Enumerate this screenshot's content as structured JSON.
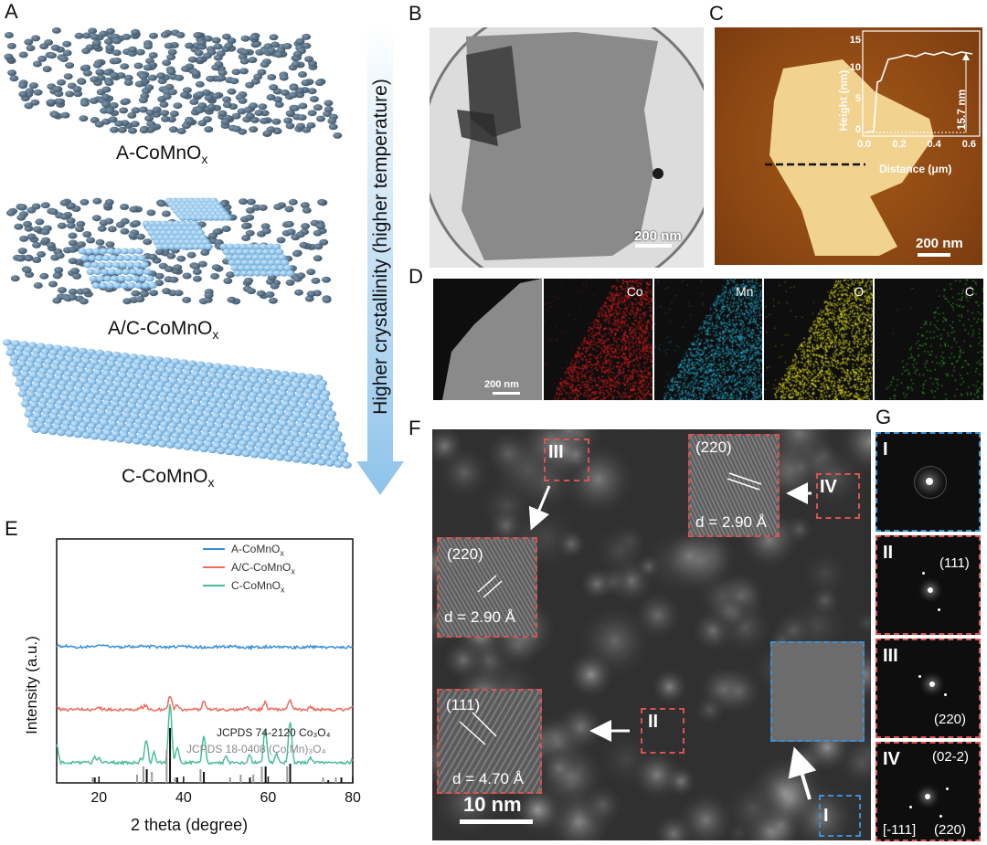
{
  "panels": {
    "A": {
      "label": "A",
      "arrow_text": "Higher crystallinity (higher temperature)",
      "captions": {
        "a": {
          "main": "A-CoMnO",
          "sub": "x"
        },
        "ac": {
          "main": "A/C-CoMnO",
          "sub": "x"
        },
        "c": {
          "main": "C-CoMnO",
          "sub": "x"
        }
      }
    },
    "B": {
      "label": "B",
      "scalebar": "200 nm"
    },
    "C": {
      "label": "C",
      "scalebar": "200 nm",
      "inset": {
        "ylabel": "Height (nm)",
        "xlabel": "Distance (μm)",
        "yticks": [
          "0",
          "5",
          "10",
          "15"
        ],
        "xticks": [
          "0.0",
          "0.2",
          "0.4",
          "0.6"
        ],
        "annotation": "15.7 nm"
      }
    },
    "D": {
      "label": "D",
      "scalebar": "200 nm",
      "maps": [
        "Co",
        "Mn",
        "O",
        "C"
      ],
      "colors": {
        "Co": "#e41b1b",
        "Mn": "#1fb3d9",
        "O": "#e8e21a",
        "C": "#35b52a"
      }
    },
    "E": {
      "label": "E",
      "legend": [
        {
          "main": "A-CoMnO",
          "sub": "x",
          "color": "#3a8fd6"
        },
        {
          "main": "A/C-CoMnO",
          "sub": "x",
          "color": "#ef6a5a"
        },
        {
          "main": "C-CoMnO",
          "sub": "x",
          "color": "#4cbf94"
        }
      ],
      "ref1": "JCPDS 74-2120 Co₃O₄",
      "ref2": "JCPDS 18-0408 (Co,Mn)₃O₄",
      "ylabel": "Intensity (a.u.)",
      "xlabel": "2 theta (degree)",
      "xticks": [
        "20",
        "40",
        "60",
        "80"
      ]
    },
    "F": {
      "label": "F",
      "scalebar": "10 nm",
      "regions": [
        "I",
        "II",
        "III",
        "IV"
      ],
      "insets": {
        "iv": {
          "plane": "(220)",
          "d": "d = 2.90 Å"
        },
        "iii": {
          "plane": "(220)",
          "d": "d = 2.90 Å"
        },
        "ii": {
          "plane": "(111)",
          "d": "d = 4.70 Å"
        }
      }
    },
    "G": {
      "label": "G",
      "ffts": [
        {
          "id": "I",
          "labels": []
        },
        {
          "id": "II",
          "labels": [
            "(111)"
          ]
        },
        {
          "id": "III",
          "labels": [
            "(220)"
          ]
        },
        {
          "id": "IV",
          "labels": [
            "(02-2)",
            "(220)",
            "[-111]"
          ]
        }
      ]
    }
  },
  "chart_data": {
    "type": "line",
    "xlabel": "2 theta (degree)",
    "ylabel": "Intensity (a.u.)",
    "xlim": [
      10,
      80
    ],
    "series": [
      {
        "name": "A-CoMnOx",
        "x": [
          10,
          20,
          30,
          40,
          50,
          60,
          70,
          80
        ],
        "values": [
          0.1,
          0.1,
          0.09,
          0.08,
          0.08,
          0.07,
          0.07,
          0.06
        ]
      },
      {
        "name": "A/C-CoMnOx",
        "x": [
          10,
          20,
          30,
          31,
          36.8,
          38.5,
          44.8,
          55,
          59.3,
          65.2,
          70,
          80
        ],
        "values": [
          0.1,
          0.1,
          0.1,
          0.18,
          0.55,
          0.2,
          0.3,
          0.12,
          0.28,
          0.4,
          0.12,
          0.1
        ]
      },
      {
        "name": "C-CoMnOx",
        "x": [
          10,
          19,
          20,
          30,
          31.2,
          33,
          36.8,
          38.5,
          44.8,
          50,
          55.6,
          59.3,
          62,
          65.2,
          70,
          80
        ],
        "values": [
          0.4,
          0.15,
          0.12,
          0.12,
          0.5,
          0.25,
          1.2,
          0.35,
          0.55,
          0.15,
          0.2,
          0.7,
          0.2,
          0.85,
          0.15,
          0.1
        ]
      }
    ],
    "reference_black": {
      "name": "JCPDS 74-2120 Co3O4",
      "x": [
        19,
        31.3,
        36.8,
        38.5,
        44.8,
        55.7,
        59.4,
        65.2,
        74.2,
        77.3
      ],
      "values": [
        0.1,
        0.25,
        1.0,
        0.1,
        0.2,
        0.1,
        0.3,
        0.35,
        0.05,
        0.1
      ]
    },
    "reference_gray": {
      "name": "JCPDS 18-0408 (Co,Mn)3O4",
      "x": [
        18.5,
        29,
        30.5,
        32.5,
        36,
        38,
        44,
        51,
        53.5,
        56.5,
        58.5,
        64.5,
        73,
        76
      ],
      "values": [
        0.1,
        0.15,
        0.3,
        0.2,
        0.6,
        0.1,
        0.25,
        0.1,
        0.15,
        0.15,
        0.3,
        0.3,
        0.1,
        0.1
      ]
    }
  }
}
